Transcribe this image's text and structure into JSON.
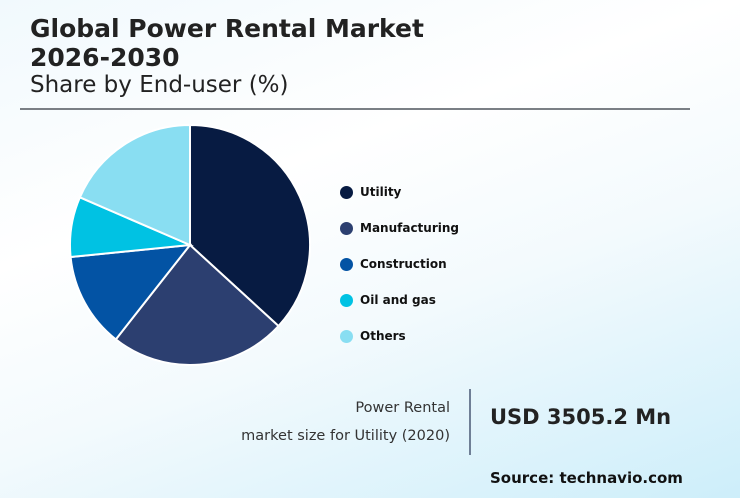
{
  "header": {
    "title_line1": "Global Power Rental Market",
    "title_line2": "2026-2030",
    "subtitle": "Share by End-user (%)"
  },
  "legend": [
    {
      "label": "Utility",
      "color": "#071b42"
    },
    {
      "label": "Manufacturing",
      "color": "#2c3f70"
    },
    {
      "label": "Construction",
      "color": "#0353a4"
    },
    {
      "label": "Oil and gas",
      "color": "#00c2e3"
    },
    {
      "label": "Others",
      "color": "#89def2"
    }
  ],
  "market_size": {
    "label_line1": "Power Rental",
    "label_line2": "market size for Utility (2020)",
    "value": "USD 3505.2 Mn"
  },
  "source": "Source: technavio.com",
  "chart_data": {
    "type": "pie",
    "title": "Global Power Rental Market 2026-2030",
    "subtitle": "Share by End-user (%)",
    "categories": [
      "Utility",
      "Manufacturing",
      "Construction",
      "Oil and gas",
      "Others"
    ],
    "values": [
      36.8,
      23.8,
      12.8,
      8.1,
      18.5
    ],
    "colors": [
      "#071b42",
      "#2c3f70",
      "#0353a4",
      "#00c2e3",
      "#89def2"
    ],
    "start_angle": "12 o'clock, clockwise",
    "legend_position": "right"
  }
}
